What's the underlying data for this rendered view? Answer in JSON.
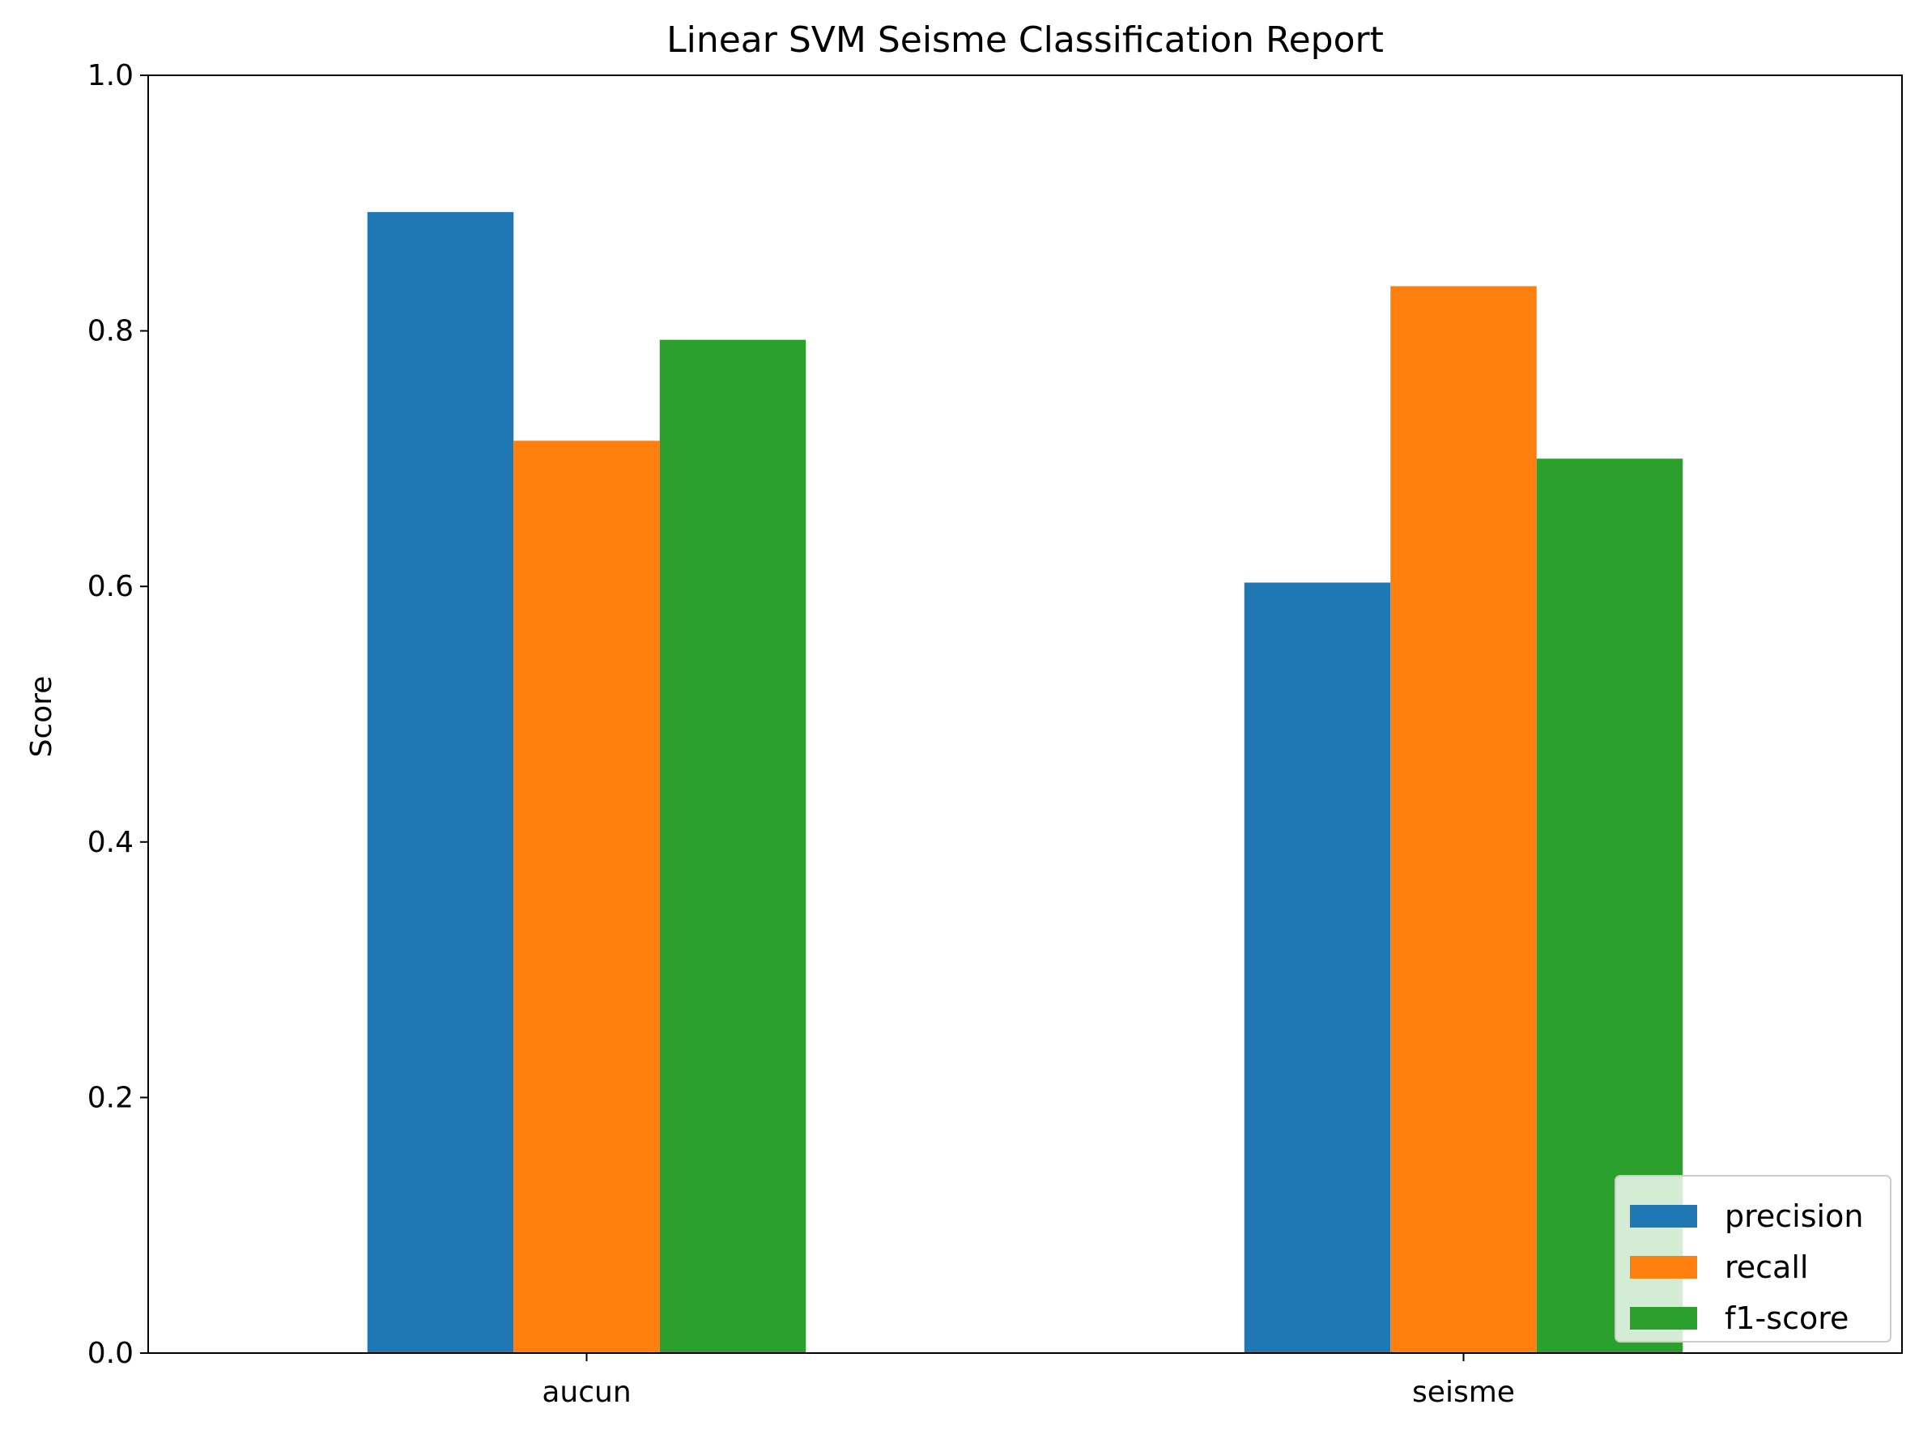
{
  "chart_data": {
    "type": "bar",
    "title": "Linear SVM Seisme Classification Report",
    "xlabel": "",
    "ylabel": "Score",
    "ylim": [
      0,
      1.0
    ],
    "yticks": [
      "0.0",
      "0.2",
      "0.4",
      "0.6",
      "0.8",
      "1.0"
    ],
    "categories": [
      "aucun",
      "seisme"
    ],
    "series": [
      {
        "name": "precision",
        "color": "#1f77b4",
        "values": [
          0.893,
          0.603
        ]
      },
      {
        "name": "recall",
        "color": "#ff7f0e",
        "values": [
          0.714,
          0.835
        ]
      },
      {
        "name": "f1-score",
        "color": "#2ca02c",
        "values": [
          0.793,
          0.7
        ]
      }
    ],
    "grid": false,
    "legend_placement": "lower-right"
  }
}
